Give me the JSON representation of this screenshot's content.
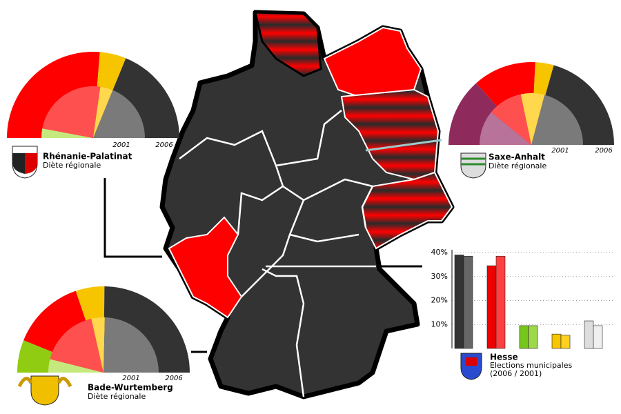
{
  "chart_data": [
    {
      "type": "semi-donut",
      "title": "Rhénanie-Palatinat",
      "subtitle": "Diète régionale",
      "rings": [
        {
          "label": "2001",
          "values": [
            6,
            49,
            8,
            38
          ],
          "colors": [
            "#c6e97e",
            "#ff5050",
            "#ffd84d",
            "#7a7a7a"
          ]
        },
        {
          "label": "2006",
          "values": [
            53,
            10,
            38
          ],
          "colors": [
            "#ff0000",
            "#f7c400",
            "#333333"
          ]
        }
      ]
    },
    {
      "type": "semi-donut",
      "title": "Saxe-Anhalt",
      "subtitle": "Diète régionale",
      "rings": [
        {
          "label": "2001",
          "values": [
            25,
            25,
            17,
            48
          ],
          "colors": [
            "#b8739a",
            "#ff5050",
            "#ffd84d",
            "#7a7a7a"
          ]
        },
        {
          "label": "2006",
          "values": [
            26,
            24,
            7,
            40
          ],
          "colors": [
            "#8e2b5c",
            "#ff0000",
            "#f7c400",
            "#333333"
          ]
        }
      ]
    },
    {
      "type": "semi-donut",
      "title": "Bade-Wurtemberg",
      "subtitle": "Diète régionale",
      "rings": [
        {
          "label": "2001",
          "values": [
            10,
            45,
            10,
            63
          ],
          "colors": [
            "#c6e97e",
            "#ff5050",
            "#ffd84d",
            "#7a7a7a"
          ]
        },
        {
          "label": "2006",
          "values": [
            17,
            38,
            15,
            69
          ],
          "colors": [
            "#8fcc12",
            "#ff0000",
            "#f7c400",
            "#333333"
          ]
        }
      ]
    },
    {
      "type": "bar",
      "title": "Hesse",
      "subtitle": "Elections municipales",
      "note": "(2006 / 2001)",
      "categories": [
        null,
        null,
        null,
        null,
        null
      ],
      "series": [
        {
          "values": [
            39,
            34.5,
            9.5,
            6,
            11.5
          ],
          "colors": [
            "#333333",
            "#ee0000",
            "#77c61a",
            "#f7c400",
            "#dddddd"
          ]
        },
        {
          "values": [
            38.5,
            38.5,
            9.5,
            5.5,
            9.5
          ],
          "colors": [
            "#666666",
            "#ff4040",
            "#9fd84a",
            "#ffd020",
            "#f0f0f0"
          ]
        }
      ],
      "ylim": [
        0,
        40
      ],
      "yticks": [
        {
          "value": 10,
          "label": "10%"
        },
        {
          "value": 20,
          "label": "20%"
        },
        {
          "value": 30,
          "label": "30%"
        },
        {
          "value": 40,
          "label": "40%"
        }
      ],
      "grid": true
    }
  ]
}
